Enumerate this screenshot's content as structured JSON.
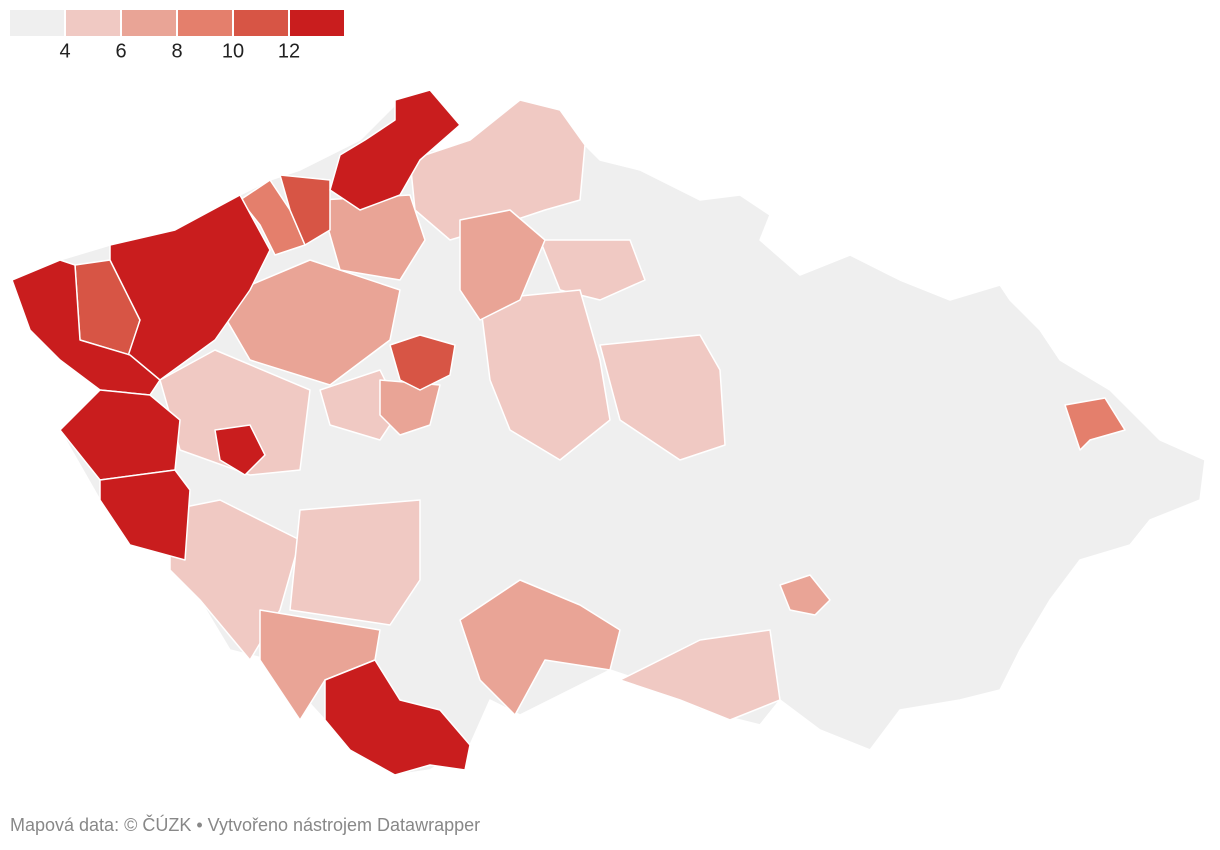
{
  "legend": {
    "colors": [
      "#efefef",
      "#f0c9c3",
      "#e9a496",
      "#e47f6c",
      "#d75545",
      "#c91d1e"
    ],
    "ticks": [
      4,
      6,
      8,
      10,
      12
    ]
  },
  "footer": "Mapová data: © ČÚZK  • Vytvořeno nástrojem Datawrapper"
}
